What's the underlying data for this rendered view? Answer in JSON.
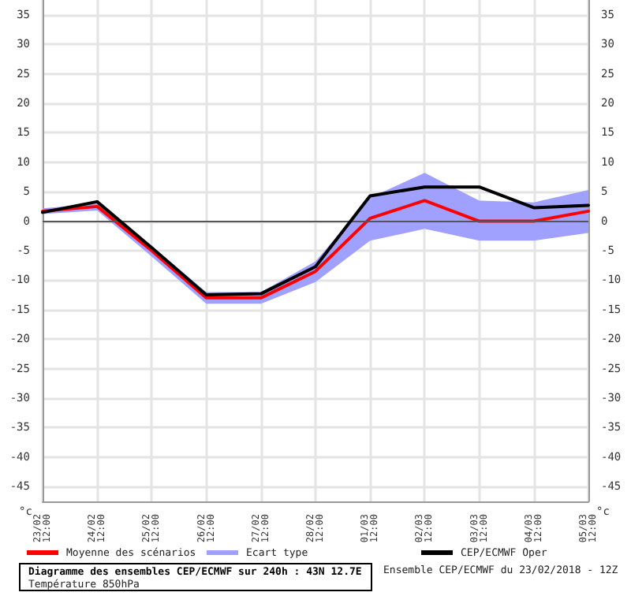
{
  "chart_data": {
    "type": "line",
    "title": "Diagramme des ensembles CEP/ECMWF sur 240h : 43N 12.7E",
    "subtitle": "Température 850hPa",
    "annotations": [
      "Ensemble CEP/ECMWF du 23/02/2018 - 12Z"
    ],
    "ylabel": "°c",
    "y2label": "°c",
    "categories": [
      "23/02\n12:00",
      "24/02\n12:00",
      "25/02\n12:00",
      "26/02\n12:00",
      "27/02\n12:00",
      "28/02\n12:00",
      "01/03\n12:00",
      "02/03\n12:00",
      "03/03\n12:00",
      "04/03\n12:00",
      "05/03\n12:00"
    ],
    "series": [
      {
        "name": "Moyenne des scénarios",
        "color": "#ff0000",
        "values": [
          1.7,
          2.5,
          -5,
          -13,
          -13,
          -8.5,
          0.5,
          3.5,
          0,
          0,
          1.7
        ]
      },
      {
        "name": "Ecart type",
        "type": "area",
        "color": "#a0a0ff",
        "values": [
          null,
          null,
          null,
          null,
          null,
          null,
          null,
          null,
          null,
          null,
          null
        ],
        "lower": [
          1.2,
          1.8,
          -6,
          -14,
          -14,
          -10.3,
          -3.3,
          -1.3,
          -3.3,
          -3.3,
          -2
        ],
        "upper": [
          2.2,
          3,
          -4.2,
          -12,
          -12,
          -6.8,
          4,
          8.2,
          3.5,
          3.2,
          5.3
        ]
      },
      {
        "name": "CEP/ECMWF Oper",
        "color": "#000000",
        "values": [
          1.5,
          3.3,
          -4.5,
          -12.5,
          -12.3,
          -7.7,
          4.3,
          5.8,
          5.8,
          2.3,
          2.7
        ]
      }
    ],
    "ylim": [
      -47.5,
      37.5
    ],
    "yticks": [
      -45,
      -40,
      -35,
      -30,
      -25,
      -20,
      -15,
      -10,
      -5,
      0,
      5,
      10,
      15,
      20,
      25,
      30,
      35
    ],
    "y2lim": [
      -47.5,
      37.5
    ],
    "y2ticks": [
      -45,
      -40,
      -35,
      -30,
      -25,
      -20,
      -15,
      -10,
      -5,
      0,
      5,
      10,
      15,
      20,
      25,
      30,
      35
    ],
    "ref_lines": [
      {
        "axis": "y",
        "value": 0,
        "color": "#555555"
      }
    ],
    "grid": true,
    "legend": "bottom",
    "marker": "none",
    "line_style": "solid"
  }
}
